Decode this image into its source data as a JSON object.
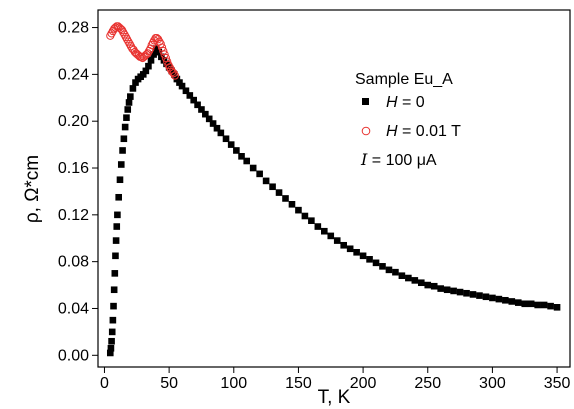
{
  "chart_data": {
    "type": "scatter",
    "xlabel": "T, K",
    "ylabel": "ρ, Ω*cm",
    "xlim": [
      -5,
      360
    ],
    "ylim": [
      -0.01,
      0.295
    ],
    "x_ticks": [
      "0",
      "50",
      "100",
      "150",
      "200",
      "250",
      "300",
      "350"
    ],
    "y_ticks": [
      "0.00",
      "0.04",
      "0.08",
      "0.12",
      "0.16",
      "0.20",
      "0.24",
      "0.28"
    ],
    "legend": {
      "title": "Sample Eu_A",
      "entries": [
        {
          "symbol": "H",
          "text": " = 0"
        },
        {
          "symbol": "H",
          "text": " = 0.01 T"
        }
      ],
      "current": {
        "symbol": "I",
        "text": " =  100 μA"
      },
      "placement": "upper-right"
    },
    "series": [
      {
        "marker": "filled-square",
        "color": "#000000",
        "points": [
          [
            4.5,
            0.002
          ],
          [
            5,
            0.006
          ],
          [
            5.5,
            0.012
          ],
          [
            6,
            0.02
          ],
          [
            6.5,
            0.03
          ],
          [
            7,
            0.042
          ],
          [
            7.5,
            0.056
          ],
          [
            8,
            0.07
          ],
          [
            8.5,
            0.085
          ],
          [
            9,
            0.098
          ],
          [
            9.5,
            0.11
          ],
          [
            10,
            0.12
          ],
          [
            11,
            0.135
          ],
          [
            12,
            0.15
          ],
          [
            13,
            0.163
          ],
          [
            14,
            0.175
          ],
          [
            15,
            0.185
          ],
          [
            16,
            0.195
          ],
          [
            17,
            0.203
          ],
          [
            18,
            0.21
          ],
          [
            19,
            0.216
          ],
          [
            20,
            0.221
          ],
          [
            22,
            0.228
          ],
          [
            24,
            0.233
          ],
          [
            26,
            0.236
          ],
          [
            28,
            0.238
          ],
          [
            30,
            0.24
          ],
          [
            32,
            0.243
          ],
          [
            34,
            0.247
          ],
          [
            36,
            0.252
          ],
          [
            38,
            0.257
          ],
          [
            40,
            0.262
          ],
          [
            42,
            0.259
          ],
          [
            44,
            0.255
          ],
          [
            46,
            0.252
          ],
          [
            48,
            0.249
          ],
          [
            50,
            0.246
          ],
          [
            52,
            0.243
          ],
          [
            54,
            0.24
          ],
          [
            56,
            0.236
          ],
          [
            58,
            0.233
          ],
          [
            60,
            0.23
          ],
          [
            63,
            0.226
          ],
          [
            66,
            0.222
          ],
          [
            69,
            0.218
          ],
          [
            72,
            0.214
          ],
          [
            75,
            0.21
          ],
          [
            78,
            0.206
          ],
          [
            81,
            0.202
          ],
          [
            84,
            0.198
          ],
          [
            87,
            0.194
          ],
          [
            90,
            0.19
          ],
          [
            94,
            0.185
          ],
          [
            98,
            0.18
          ],
          [
            102,
            0.175
          ],
          [
            106,
            0.17
          ],
          [
            110,
            0.166
          ],
          [
            115,
            0.16
          ],
          [
            120,
            0.155
          ],
          [
            125,
            0.149
          ],
          [
            130,
            0.144
          ],
          [
            135,
            0.139
          ],
          [
            140,
            0.134
          ],
          [
            145,
            0.129
          ],
          [
            150,
            0.124
          ],
          [
            155,
            0.119
          ],
          [
            160,
            0.115
          ],
          [
            165,
            0.11
          ],
          [
            170,
            0.106
          ],
          [
            175,
            0.102
          ],
          [
            180,
            0.098
          ],
          [
            185,
            0.094
          ],
          [
            190,
            0.091
          ],
          [
            195,
            0.088
          ],
          [
            200,
            0.085
          ],
          [
            205,
            0.082
          ],
          [
            210,
            0.079
          ],
          [
            215,
            0.076
          ],
          [
            220,
            0.073
          ],
          [
            225,
            0.071
          ],
          [
            230,
            0.068
          ],
          [
            235,
            0.066
          ],
          [
            240,
            0.064
          ],
          [
            245,
            0.062
          ],
          [
            250,
            0.06
          ],
          [
            255,
            0.059
          ],
          [
            260,
            0.057
          ],
          [
            265,
            0.056
          ],
          [
            270,
            0.055
          ],
          [
            275,
            0.054
          ],
          [
            280,
            0.053
          ],
          [
            285,
            0.052
          ],
          [
            290,
            0.051
          ],
          [
            295,
            0.05
          ],
          [
            300,
            0.049
          ],
          [
            305,
            0.048
          ],
          [
            310,
            0.047
          ],
          [
            315,
            0.046
          ],
          [
            320,
            0.045
          ],
          [
            325,
            0.044
          ],
          [
            330,
            0.044
          ],
          [
            335,
            0.043
          ],
          [
            340,
            0.043
          ],
          [
            345,
            0.042
          ],
          [
            350,
            0.041
          ]
        ]
      },
      {
        "marker": "open-circle",
        "color": "#e8322f",
        "points": [
          [
            4.5,
            0.273
          ],
          [
            5.5,
            0.275
          ],
          [
            6.5,
            0.277
          ],
          [
            7.5,
            0.279
          ],
          [
            8.5,
            0.28
          ],
          [
            9.5,
            0.281
          ],
          [
            10.5,
            0.281
          ],
          [
            11.5,
            0.28
          ],
          [
            12.5,
            0.279
          ],
          [
            13.5,
            0.278
          ],
          [
            14.5,
            0.276
          ],
          [
            15.5,
            0.274
          ],
          [
            16.5,
            0.272
          ],
          [
            17.5,
            0.27
          ],
          [
            18.5,
            0.268
          ],
          [
            19.5,
            0.266
          ],
          [
            20.5,
            0.264
          ],
          [
            21.5,
            0.262
          ],
          [
            22.5,
            0.261
          ],
          [
            23.5,
            0.259
          ],
          [
            24.5,
            0.258
          ],
          [
            25.5,
            0.257
          ],
          [
            26.5,
            0.256
          ],
          [
            27.5,
            0.255
          ],
          [
            28.5,
            0.255
          ],
          [
            29.5,
            0.254
          ],
          [
            30.5,
            0.255
          ],
          [
            31.5,
            0.256
          ],
          [
            32.5,
            0.257
          ],
          [
            33.5,
            0.258
          ],
          [
            34.5,
            0.26
          ],
          [
            35.5,
            0.262
          ],
          [
            36.5,
            0.265
          ],
          [
            37.5,
            0.267
          ],
          [
            38.5,
            0.269
          ],
          [
            39.5,
            0.271
          ],
          [
            40.5,
            0.271
          ],
          [
            41.5,
            0.27
          ],
          [
            42.5,
            0.268
          ],
          [
            43.5,
            0.266
          ],
          [
            44.5,
            0.263
          ],
          [
            45.5,
            0.26
          ],
          [
            46.5,
            0.257
          ],
          [
            47.5,
            0.254
          ],
          [
            48.5,
            0.251
          ],
          [
            49.5,
            0.248
          ],
          [
            50.5,
            0.246
          ],
          [
            51.5,
            0.244
          ],
          [
            52.5,
            0.242
          ],
          [
            53.5,
            0.241
          ],
          [
            54.5,
            0.239
          ]
        ]
      }
    ]
  }
}
